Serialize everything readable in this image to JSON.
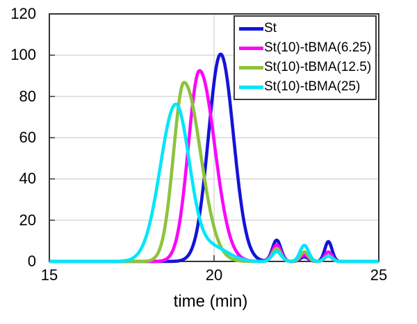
{
  "chart_data": {
    "type": "line",
    "title": "",
    "xlabel": "time (min)",
    "ylabel": "",
    "xlim": [
      15,
      25
    ],
    "ylim": [
      0,
      120
    ],
    "xticks": [
      15,
      20,
      25
    ],
    "yticks": [
      0,
      20,
      40,
      60,
      80,
      100,
      120
    ],
    "grid": {
      "horizontal": true,
      "vertical_at": [
        20
      ],
      "color": "#d9d9d9"
    },
    "axis_color": "#333333",
    "legend": {
      "position": "top-right",
      "border_color": "#3c3c3c"
    },
    "series": [
      {
        "name": "St",
        "color": "#1413d8",
        "main_peak": {
          "time_min": 20.2,
          "height": 100.5
        },
        "minor_peaks": [
          {
            "time_min": 21.9,
            "height": 10.3
          },
          {
            "time_min": 22.74,
            "height": 2.2
          },
          {
            "time_min": 23.47,
            "height": 9.6
          }
        ],
        "peaks": [
          {
            "mu": 20.2,
            "amp": 100.5,
            "sl": 0.37,
            "sr": 0.39
          },
          {
            "mu": 21.9,
            "amp": 10.3,
            "sl": 0.13,
            "sr": 0.13
          },
          {
            "mu": 22.74,
            "amp": 2.2,
            "sl": 0.12,
            "sr": 0.12
          },
          {
            "mu": 23.47,
            "amp": 9.6,
            "sl": 0.11,
            "sr": 0.11
          }
        ]
      },
      {
        "name": "St(10)-tBMA(6.25)",
        "color": "#fa07fa",
        "main_peak": {
          "time_min": 19.56,
          "height": 92.5
        },
        "minor_peaks": [
          {
            "time_min": 21.9,
            "height": 8.0
          },
          {
            "time_min": 22.74,
            "height": 3.2
          },
          {
            "time_min": 23.47,
            "height": 4.6
          }
        ],
        "peaks": [
          {
            "mu": 19.56,
            "amp": 92.5,
            "sl": 0.34,
            "sr": 0.46
          },
          {
            "mu": 21.9,
            "amp": 8.0,
            "sl": 0.13,
            "sr": 0.13
          },
          {
            "mu": 22.74,
            "amp": 3.2,
            "sl": 0.12,
            "sr": 0.12
          },
          {
            "mu": 23.47,
            "amp": 4.6,
            "sl": 0.11,
            "sr": 0.11
          }
        ]
      },
      {
        "name": "St(10)-tBMA(12.5)",
        "color": "#8dc33d",
        "main_peak": {
          "time_min": 19.09,
          "height": 86.8
        },
        "minor_peaks": [
          {
            "time_min": 21.9,
            "height": 6.2
          },
          {
            "time_min": 22.74,
            "height": 4.6
          },
          {
            "time_min": 23.47,
            "height": 2.6
          }
        ],
        "peaks": [
          {
            "mu": 19.09,
            "amp": 86.8,
            "sl": 0.32,
            "sr": 0.5
          },
          {
            "mu": 21.9,
            "amp": 6.2,
            "sl": 0.13,
            "sr": 0.13
          },
          {
            "mu": 22.74,
            "amp": 4.6,
            "sl": 0.12,
            "sr": 0.12
          },
          {
            "mu": 23.47,
            "amp": 2.6,
            "sl": 0.11,
            "sr": 0.11
          }
        ]
      },
      {
        "name": "St(10)-tBMA(25)",
        "color": "#00e6f9",
        "main_peak": {
          "time_min": 18.84,
          "height": 76.2
        },
        "minor_peaks": [
          {
            "time_min": 21.9,
            "height": 4.8
          },
          {
            "time_min": 22.74,
            "height": 7.8
          },
          {
            "time_min": 23.47,
            "height": 2.6
          }
        ],
        "peaks": [
          {
            "mu": 18.84,
            "amp": 76.2,
            "sl": 0.47,
            "sr": 0.42
          },
          {
            "mu": 20.0,
            "amp": 6.5,
            "sl": 0.38,
            "sr": 0.45
          },
          {
            "mu": 21.9,
            "amp": 4.8,
            "sl": 0.14,
            "sr": 0.14
          },
          {
            "mu": 22.74,
            "amp": 7.8,
            "sl": 0.13,
            "sr": 0.13
          },
          {
            "mu": 23.47,
            "amp": 2.6,
            "sl": 0.12,
            "sr": 0.12
          }
        ]
      }
    ]
  }
}
